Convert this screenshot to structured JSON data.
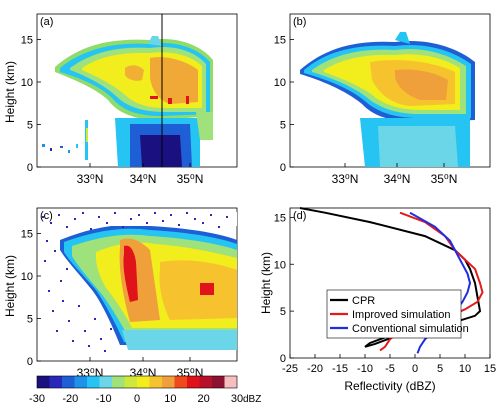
{
  "chart_data": [
    {
      "type": "heatmap",
      "panel_label": "(a)",
      "ylabel": "Height (km)",
      "ylim": [
        0,
        18
      ],
      "yticks": [
        0,
        5,
        10,
        15
      ],
      "xtick_labels": [
        "33⁰N",
        "34⁰N",
        "35⁰N"
      ],
      "annotation": "vertical line marking CPR track",
      "description": "radar reflectivity cross-section"
    },
    {
      "type": "heatmap",
      "panel_label": "(b)",
      "ylabel": "",
      "ylim": [
        0,
        18
      ],
      "yticks": [
        0,
        5,
        10,
        15
      ],
      "xtick_labels": [
        "33⁰N",
        "34⁰N",
        "35⁰N"
      ]
    },
    {
      "type": "heatmap",
      "panel_label": "(c)",
      "ylabel": "Height (km)",
      "ylim": [
        0,
        18
      ],
      "yticks": [
        0,
        5,
        10,
        15
      ],
      "xtick_labels": [
        "33⁰N",
        "34⁰N",
        "35⁰N"
      ]
    },
    {
      "type": "line",
      "panel_label": "(d)",
      "xlabel": "Reflectivity (dBZ)",
      "ylabel": "Height (km)",
      "xlim": [
        -25,
        15
      ],
      "ylim": [
        0,
        16
      ],
      "xticks": [
        -25,
        -20,
        -15,
        -10,
        -5,
        0,
        5,
        10,
        15
      ],
      "yticks": [
        0,
        5,
        10,
        15
      ],
      "legend": "inside-right",
      "series": [
        {
          "name": "CPR",
          "color": "#000000",
          "points": [
            [
              -23,
              16
            ],
            [
              -18,
              15.5
            ],
            [
              -9,
              14.5
            ],
            [
              2,
              13
            ],
            [
              8,
              11.5
            ],
            [
              10,
              10.5
            ],
            [
              11,
              9.5
            ],
            [
              12,
              8
            ],
            [
              12.5,
              6.5
            ],
            [
              13,
              5
            ],
            [
              12,
              4.5
            ],
            [
              6,
              3.5
            ],
            [
              -2,
              2.8
            ],
            [
              -6,
              2.2
            ],
            [
              -9,
              1.6
            ],
            [
              -10,
              1.2
            ],
            [
              -8,
              1.5
            ],
            [
              -3,
              2.5
            ]
          ]
        },
        {
          "name": "Improved simulation",
          "color": "#e41a1c",
          "points": [
            [
              -3,
              15.5
            ],
            [
              2,
              14.5
            ],
            [
              6,
              13
            ],
            [
              8,
              11.5
            ],
            [
              10,
              10.5
            ],
            [
              12,
              9.5
            ],
            [
              13,
              8
            ],
            [
              13.5,
              7
            ],
            [
              12.5,
              6
            ],
            [
              10,
              5.2
            ],
            [
              7,
              4.5
            ],
            [
              3,
              3.8
            ],
            [
              -1,
              3.2
            ],
            [
              -3,
              2.8
            ],
            [
              -4,
              2.5
            ],
            [
              -5,
              2
            ],
            [
              -6,
              1.2
            ],
            [
              -7,
              0.8
            ]
          ]
        },
        {
          "name": "Conventional simulation",
          "color": "#1f2ee0",
          "points": [
            [
              -1,
              15.5
            ],
            [
              4,
              14
            ],
            [
              7,
              12.5
            ],
            [
              8.5,
              11
            ],
            [
              9.5,
              10
            ],
            [
              10.5,
              9
            ],
            [
              11,
              8
            ],
            [
              10.5,
              7
            ],
            [
              9.5,
              6
            ],
            [
              8,
              5
            ],
            [
              6,
              4
            ],
            [
              4,
              3
            ],
            [
              2,
              2
            ],
            [
              1,
              1.2
            ],
            [
              0.5,
              0.5
            ]
          ]
        }
      ]
    }
  ],
  "colorbar": {
    "ticks": [
      "-30",
      "-20",
      "-10",
      "0",
      "10",
      "20",
      "30"
    ],
    "unit": "dBZ",
    "colors": [
      "#1a1080",
      "#2b27b8",
      "#1e5fd6",
      "#1d92e8",
      "#26c4f2",
      "#6ad6e8",
      "#9fe17a",
      "#cfe83c",
      "#f2ed1c",
      "#f6c32e",
      "#f0a03a",
      "#f04a1c",
      "#e0121a",
      "#b8102a",
      "#8c1232",
      "#f6bfbf"
    ]
  }
}
